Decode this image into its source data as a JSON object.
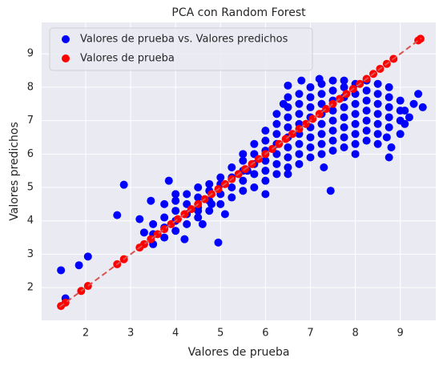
{
  "chart_data": {
    "type": "scatter",
    "title": "PCA con Random Forest",
    "xlabel": "Valores de prueba",
    "ylabel": "Valores predichos",
    "xlim": [
      1.02,
      9.79
    ],
    "ylim": [
      1.02,
      9.94
    ],
    "xticks": [
      2,
      3,
      4,
      5,
      6,
      7,
      8,
      9
    ],
    "yticks": [
      2,
      3,
      4,
      5,
      6,
      7,
      8,
      9
    ],
    "grid": true,
    "legend": "upper left",
    "series": [
      {
        "name": "Valores de prueba vs. Valores predichos",
        "color": "#0000ff",
        "x": [
          1.45,
          1.55,
          1.85,
          2.05,
          2.7,
          2.85,
          3.2,
          3.3,
          3.45,
          3.85,
          3.75,
          4.2,
          4.0,
          4.6,
          4.8,
          4.95,
          4.5,
          5.1,
          5.6,
          6.0,
          6.5,
          7.45,
          7.3,
          8.0,
          8.5,
          8.75,
          8.8,
          9.0,
          9.1,
          9.2,
          9.3,
          9.4,
          9.1,
          9.5,
          8.7,
          6.5,
          6.8,
          7.2,
          6.4,
          3.5,
          3.5,
          3.5,
          3.75,
          3.75,
          3.75,
          4.0,
          4.0,
          4.0,
          4.0,
          4.25,
          4.25,
          4.25,
          4.25,
          4.5,
          4.5,
          4.5,
          4.5,
          4.75,
          4.75,
          4.75,
          4.75,
          5.0,
          5.0,
          5.0,
          5.0,
          5.25,
          5.25,
          5.25,
          5.25,
          5.5,
          5.5,
          5.5,
          5.5,
          5.5,
          5.75,
          5.75,
          5.75,
          5.75,
          5.75,
          6.0,
          6.0,
          6.0,
          6.0,
          6.0,
          6.0,
          6.25,
          6.25,
          6.25,
          6.25,
          6.25,
          6.25,
          6.25,
          6.5,
          6.5,
          6.5,
          6.5,
          6.5,
          6.5,
          6.5,
          6.5,
          6.75,
          6.75,
          6.75,
          6.75,
          6.75,
          6.75,
          6.75,
          6.75,
          7.0,
          7.0,
          7.0,
          7.0,
          7.0,
          7.0,
          7.0,
          7.0,
          7.25,
          7.25,
          7.25,
          7.25,
          7.25,
          7.25,
          7.25,
          7.25,
          7.5,
          7.5,
          7.5,
          7.5,
          7.5,
          7.5,
          7.5,
          7.5,
          7.75,
          7.75,
          7.75,
          7.75,
          7.75,
          7.75,
          7.75,
          7.75,
          8.0,
          8.0,
          8.0,
          8.0,
          8.0,
          8.0,
          8.0,
          8.25,
          8.25,
          8.25,
          8.25,
          8.25,
          8.25,
          8.25,
          8.5,
          8.5,
          8.5,
          8.5,
          8.5,
          8.5,
          8.75,
          8.75,
          8.75,
          8.75,
          8.75,
          9.0,
          9.0,
          9.0
        ],
        "values": [
          2.52,
          1.68,
          2.67,
          2.93,
          4.17,
          5.08,
          4.05,
          3.65,
          4.6,
          5.2,
          4.5,
          3.45,
          4.8,
          3.9,
          4.5,
          3.35,
          4.3,
          4.2,
          5.5,
          4.8,
          5.4,
          4.9,
          5.6,
          6.0,
          6.3,
          5.9,
          6.2,
          6.6,
          6.9,
          7.1,
          7.5,
          7.8,
          7.3,
          7.4,
          6.5,
          8.05,
          8.2,
          8.25,
          7.5,
          3.3,
          3.6,
          3.9,
          3.5,
          3.8,
          4.1,
          3.7,
          4.0,
          4.3,
          4.6,
          3.9,
          4.2,
          4.5,
          4.8,
          4.1,
          4.4,
          4.7,
          5.0,
          4.3,
          4.6,
          4.9,
          5.1,
          4.5,
          4.8,
          5.1,
          5.3,
          4.7,
          5.0,
          5.3,
          5.6,
          4.9,
          5.2,
          5.5,
          5.8,
          6.0,
          5.0,
          5.4,
          5.7,
          6.0,
          6.3,
          5.2,
          5.5,
          5.8,
          6.1,
          6.4,
          6.7,
          5.4,
          5.7,
          6.0,
          6.3,
          6.6,
          6.9,
          7.2,
          5.6,
          5.9,
          6.2,
          6.5,
          6.8,
          7.1,
          7.4,
          7.7,
          5.7,
          6.0,
          6.3,
          6.6,
          6.9,
          7.2,
          7.5,
          7.8,
          5.9,
          6.2,
          6.5,
          6.8,
          7.1,
          7.4,
          7.7,
          8.0,
          6.0,
          6.3,
          6.6,
          6.9,
          7.2,
          7.5,
          7.8,
          8.1,
          6.1,
          6.4,
          6.7,
          7.0,
          7.3,
          7.6,
          7.9,
          8.2,
          6.2,
          6.5,
          6.8,
          7.1,
          7.4,
          7.7,
          8.0,
          8.2,
          6.3,
          6.6,
          6.9,
          7.2,
          7.5,
          7.8,
          8.1,
          6.4,
          6.7,
          7.0,
          7.3,
          7.6,
          7.9,
          8.2,
          6.6,
          6.9,
          7.2,
          7.5,
          7.8,
          8.1,
          6.8,
          7.1,
          7.4,
          7.7,
          8.0,
          7.0,
          7.3,
          7.6
        ]
      },
      {
        "name": "Valores de prueba",
        "color": "#ff0000",
        "x": [
          1.45,
          1.55,
          1.9,
          2.05,
          2.7,
          2.85,
          3.2,
          3.3,
          3.45,
          3.6,
          3.75,
          3.9,
          4.05,
          4.2,
          4.35,
          4.5,
          4.65,
          4.8,
          4.95,
          5.1,
          5.25,
          5.4,
          5.55,
          5.7,
          5.85,
          6.0,
          6.15,
          6.3,
          6.45,
          6.6,
          6.75,
          6.9,
          7.05,
          7.2,
          7.35,
          7.5,
          7.65,
          7.8,
          7.95,
          8.1,
          8.25,
          8.4,
          8.55,
          8.7,
          8.85,
          9.4,
          9.45
        ],
        "values": [
          1.45,
          1.55,
          1.9,
          2.05,
          2.7,
          2.85,
          3.2,
          3.3,
          3.45,
          3.6,
          3.75,
          3.9,
          4.05,
          4.2,
          4.35,
          4.5,
          4.65,
          4.8,
          4.95,
          5.1,
          5.25,
          5.4,
          5.55,
          5.7,
          5.85,
          6.0,
          6.15,
          6.3,
          6.45,
          6.6,
          6.75,
          6.9,
          7.05,
          7.2,
          7.35,
          7.5,
          7.65,
          7.8,
          7.95,
          8.1,
          8.25,
          8.4,
          8.55,
          8.7,
          8.85,
          9.4,
          9.45
        ]
      }
    ],
    "reference_line": {
      "x": [
        1.42,
        9.47
      ],
      "values": [
        1.42,
        9.47
      ],
      "color": "#d9534f"
    }
  }
}
